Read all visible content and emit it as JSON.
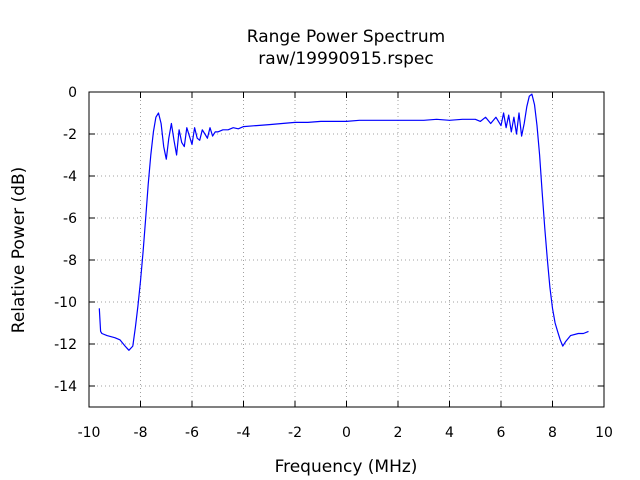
{
  "chart_data": {
    "type": "line",
    "title": "Range Power Spectrum",
    "subtitle": "raw/19990915.rspec",
    "xlabel": "Frequency (MHz)",
    "ylabel": "Relative Power (dB)",
    "xlim": [
      -10,
      10
    ],
    "ylim": [
      -15,
      0
    ],
    "xticks": [
      -10,
      -8,
      -6,
      -4,
      -2,
      0,
      2,
      4,
      6,
      8,
      10
    ],
    "yticks": [
      0,
      -2,
      -4,
      -6,
      -8,
      -10,
      -12,
      -14
    ],
    "grid": true,
    "legend": "none",
    "series": [
      {
        "color": "#0000ff",
        "x": [
          -9.6,
          -9.55,
          -9.5,
          -9.3,
          -9.0,
          -8.8,
          -8.6,
          -8.45,
          -8.3,
          -8.2,
          -8.1,
          -8.0,
          -7.9,
          -7.8,
          -7.7,
          -7.6,
          -7.5,
          -7.4,
          -7.3,
          -7.2,
          -7.1,
          -7.0,
          -6.9,
          -6.8,
          -6.7,
          -6.6,
          -6.5,
          -6.4,
          -6.3,
          -6.2,
          -6.1,
          -6.0,
          -5.9,
          -5.8,
          -5.7,
          -5.6,
          -5.5,
          -5.4,
          -5.3,
          -5.2,
          -5.1,
          -5.0,
          -4.8,
          -4.6,
          -4.4,
          -4.2,
          -4.0,
          -3.5,
          -3.0,
          -2.5,
          -2.0,
          -1.5,
          -1.0,
          -0.5,
          0.0,
          0.5,
          1.0,
          1.5,
          2.0,
          2.5,
          3.0,
          3.5,
          4.0,
          4.5,
          4.8,
          5.0,
          5.2,
          5.4,
          5.6,
          5.8,
          6.0,
          6.1,
          6.2,
          6.3,
          6.4,
          6.5,
          6.6,
          6.7,
          6.8,
          6.9,
          7.0,
          7.1,
          7.2,
          7.3,
          7.4,
          7.5,
          7.6,
          7.7,
          7.8,
          7.9,
          8.0,
          8.1,
          8.2,
          8.3,
          8.4,
          8.5,
          8.7,
          9.0,
          9.2,
          9.4
        ],
        "y": [
          -10.3,
          -11.4,
          -11.5,
          -11.6,
          -11.7,
          -11.8,
          -12.1,
          -12.3,
          -12.1,
          -11.2,
          -10.2,
          -9.0,
          -7.6,
          -6.0,
          -4.4,
          -3.0,
          -1.9,
          -1.2,
          -1.0,
          -1.5,
          -2.6,
          -3.2,
          -2.2,
          -1.5,
          -2.3,
          -3.0,
          -1.8,
          -2.4,
          -2.6,
          -1.7,
          -2.1,
          -2.5,
          -1.7,
          -2.2,
          -2.3,
          -1.8,
          -2.0,
          -2.2,
          -1.7,
          -2.1,
          -1.9,
          -1.9,
          -1.8,
          -1.8,
          -1.7,
          -1.75,
          -1.65,
          -1.6,
          -1.55,
          -1.5,
          -1.45,
          -1.45,
          -1.4,
          -1.4,
          -1.4,
          -1.35,
          -1.35,
          -1.35,
          -1.35,
          -1.35,
          -1.35,
          -1.3,
          -1.35,
          -1.3,
          -1.3,
          -1.3,
          -1.4,
          -1.2,
          -1.5,
          -1.2,
          -1.6,
          -1.0,
          -1.7,
          -1.1,
          -1.9,
          -1.2,
          -2.0,
          -1.0,
          -2.1,
          -1.5,
          -0.7,
          -0.2,
          -0.1,
          -0.6,
          -1.6,
          -3.0,
          -4.8,
          -6.5,
          -8.0,
          -9.3,
          -10.3,
          -11.0,
          -11.4,
          -11.8,
          -12.1,
          -11.9,
          -11.6,
          -11.5,
          -11.5,
          -11.4
        ]
      }
    ]
  }
}
